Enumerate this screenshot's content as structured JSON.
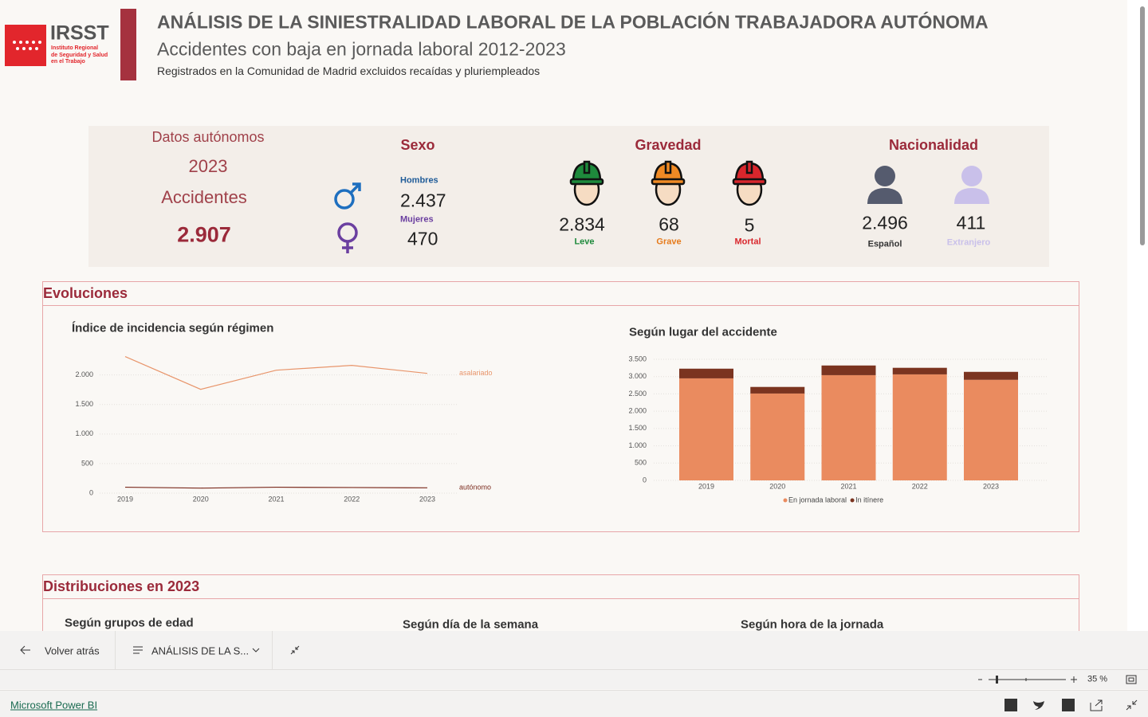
{
  "header": {
    "logo": "IRSST",
    "logo_lines": [
      "Instituto Regional",
      "de Seguridad y Salud",
      "en el Trabajo"
    ],
    "title": "ANÁLISIS DE LA SINIESTRALIDAD LABORAL DE LA POBLACIÓN TRABAJADORA AUTÓNOMA",
    "subtitle": "Accidentes con baja en jornada laboral 2012-2023",
    "note": "Registrados en la Comunidad de Madrid excluidos recaídas y pluriempleados"
  },
  "summary": {
    "label": "Datos autónomos",
    "year": "2023",
    "metric": "Accidentes",
    "total": "2.907"
  },
  "sexo": {
    "title": "Sexo",
    "items": [
      {
        "label": "Hombres",
        "value": "2.437"
      },
      {
        "label": "Mujeres",
        "value": "470"
      }
    ]
  },
  "gravedad": {
    "title": "Gravedad",
    "items": [
      {
        "label": "Leve",
        "value": "2.834"
      },
      {
        "label": "Grave",
        "value": "68"
      },
      {
        "label": "Mortal",
        "value": "5"
      }
    ]
  },
  "nacionalidad": {
    "title": "Nacionalidad",
    "items": [
      {
        "label": "Español",
        "value": "2.496"
      },
      {
        "label": "Extranjero",
        "value": "411"
      }
    ]
  },
  "evoluciones": {
    "title": "Evoluciones"
  },
  "chart_data": [
    {
      "type": "line",
      "title": "Índice de incidencia según régimen",
      "categories": [
        "2019",
        "2020",
        "2021",
        "2022",
        "2023"
      ],
      "series": [
        {
          "name": "asalariado",
          "color": "#e8956b",
          "values": [
            2311,
            1757,
            2081,
            2162,
            2027
          ]
        },
        {
          "name": "autónomo",
          "color": "#7b2b1e",
          "values": [
            100,
            85,
            100,
            95,
            90
          ]
        }
      ],
      "ylim": [
        0,
        2400
      ],
      "yticks": [
        0,
        500,
        {
          "value": 1000,
          "label": "1.000"
        },
        {
          "value": 1500,
          "label": "1.500"
        },
        {
          "value": 2000,
          "label": "2.000"
        }
      ],
      "grid": true
    },
    {
      "type": "stacked_bar",
      "title": "Según lugar del accidente",
      "categories": [
        "2019",
        "2020",
        "2021",
        "2022",
        "2023"
      ],
      "series": [
        {
          "name": "En jornada laboral",
          "color": "#ea8b5f",
          "values": [
            2949,
            2511,
            3041,
            3064,
            2907
          ]
        },
        {
          "name": "In itínere",
          "color": "#7b3420",
          "values": [
            280,
            190,
            280,
            190,
            230
          ]
        }
      ],
      "ylim": [
        0,
        3500
      ],
      "yticks": [
        0,
        500,
        {
          "value": 1000,
          "label": "1.000"
        },
        {
          "value": 1500,
          "label": "1.500"
        },
        {
          "value": 2000,
          "label": "2.000"
        },
        {
          "value": 2500,
          "label": "2.500"
        },
        {
          "value": 3000,
          "label": "3.000"
        },
        {
          "value": 3500,
          "label": "3.500"
        }
      ],
      "grid": true,
      "legend": "bottom"
    }
  ],
  "distribuciones": {
    "title": "Distribuciones en 2023",
    "charts": [
      "Según grupos de edad",
      "Según día de la semana",
      "Según hora de la jornada"
    ]
  },
  "toolbar": {
    "back": "Volver atrás",
    "page": "ANÁLISIS DE LA S...",
    "zoom": "35 %"
  },
  "footer": {
    "brand": "Microsoft Power BI"
  }
}
